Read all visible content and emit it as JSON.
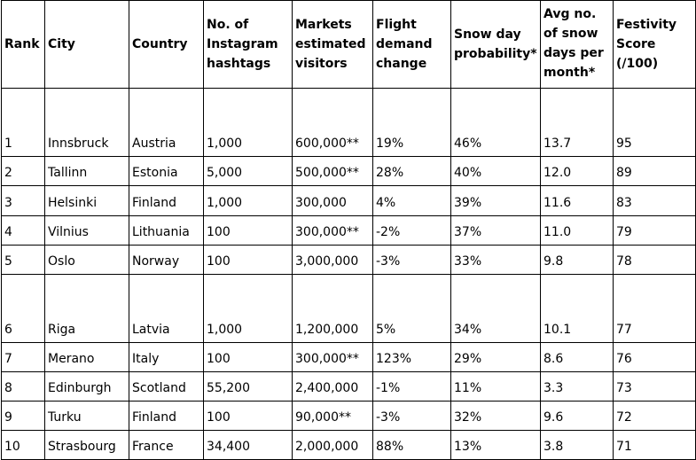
{
  "table": {
    "headers": [
      "Rank",
      "City",
      "Country",
      "No. of Instagram hashtags",
      "Markets estimated visitors",
      "Flight demand change",
      "Snow day probability*",
      "Avg no. of snow days per month*",
      "Festivity Score (/100)"
    ],
    "rows": [
      [
        "1",
        "Innsbruck",
        "Austria",
        "1,000",
        "600,000**",
        "19%",
        "46%",
        "13.7",
        "95"
      ],
      [
        "2",
        "Tallinn",
        "Estonia",
        "5,000",
        "500,000**",
        "28%",
        "40%",
        "12.0",
        "89"
      ],
      [
        "3",
        "Helsinki",
        "Finland",
        "1,000",
        "300,000",
        "4%",
        "39%",
        "11.6",
        "83"
      ],
      [
        "4",
        "Vilnius",
        "Lithuania",
        "100",
        "300,000**",
        "-2%",
        "37%",
        "11.0",
        "79"
      ],
      [
        "5",
        "Oslo",
        "Norway",
        "100",
        "3,000,000",
        "-3%",
        "33%",
        "9.8",
        "78"
      ],
      [
        "6",
        "Riga",
        "Latvia",
        "1,000",
        "1,200,000",
        "5%",
        "34%",
        "10.1",
        "77"
      ],
      [
        "7",
        "Merano",
        "Italy",
        "100",
        "300,000**",
        "123%",
        "29%",
        "8.6",
        "76"
      ],
      [
        "8",
        "Edinburgh",
        "Scotland",
        "55,200",
        "2,400,000",
        "-1%",
        "11%",
        "3.3",
        "73"
      ],
      [
        "9",
        "Turku",
        "Finland",
        "100",
        "90,000**",
        "-3%",
        "32%",
        "9.6",
        "72"
      ],
      [
        "10",
        "Strasbourg",
        "France",
        "34,400",
        "2,000,000",
        "88%",
        "13%",
        "3.8",
        "71"
      ]
    ]
  }
}
